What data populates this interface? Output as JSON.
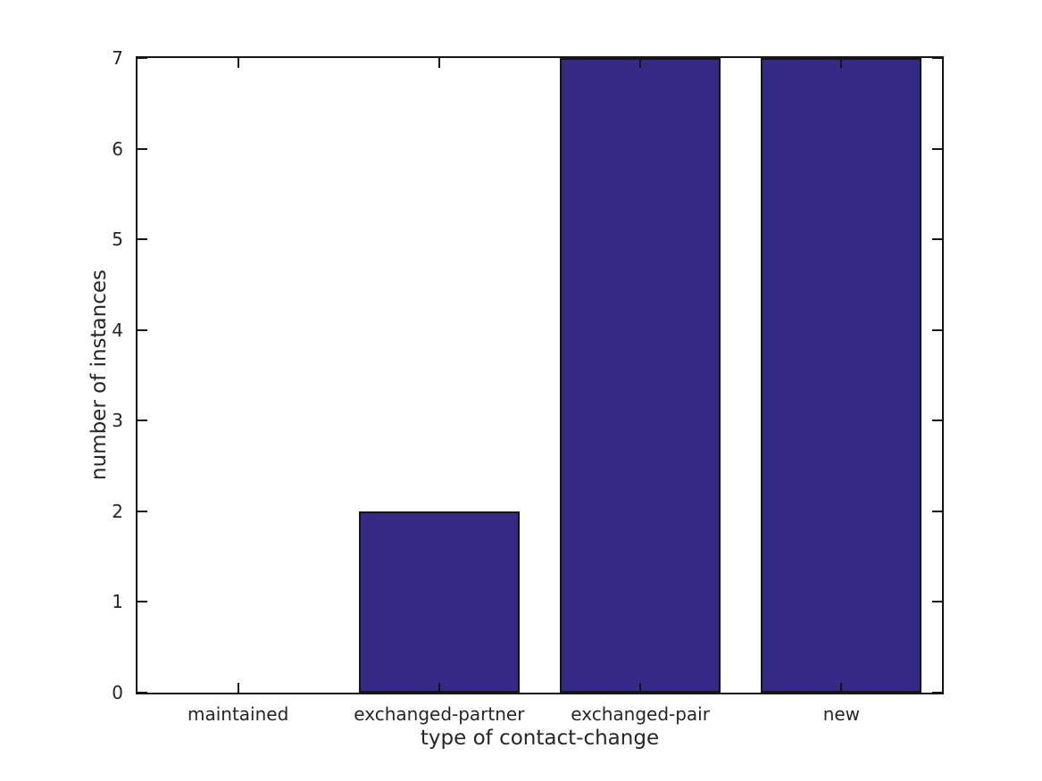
{
  "figure": {
    "background": "#ffffff"
  },
  "chart_data": {
    "type": "bar",
    "title": "",
    "xlabel": "type of contact-change",
    "ylabel": "number of instances",
    "categories": [
      "maintained",
      "exchanged-partner",
      "exchanged-pair",
      "new"
    ],
    "values": [
      0,
      2,
      7,
      7
    ],
    "ylim": [
      0,
      7
    ],
    "yticks": [
      0,
      1,
      2,
      3,
      4,
      5,
      6,
      7
    ],
    "bar_width_fraction": 0.8,
    "bar_color": "#342a86",
    "bar_edge_color": "#151515",
    "axis_color": "#151515",
    "text_color": "#262626",
    "grid": false,
    "legend": "none",
    "tick_direction": "in",
    "ticks_all_sides": true
  }
}
